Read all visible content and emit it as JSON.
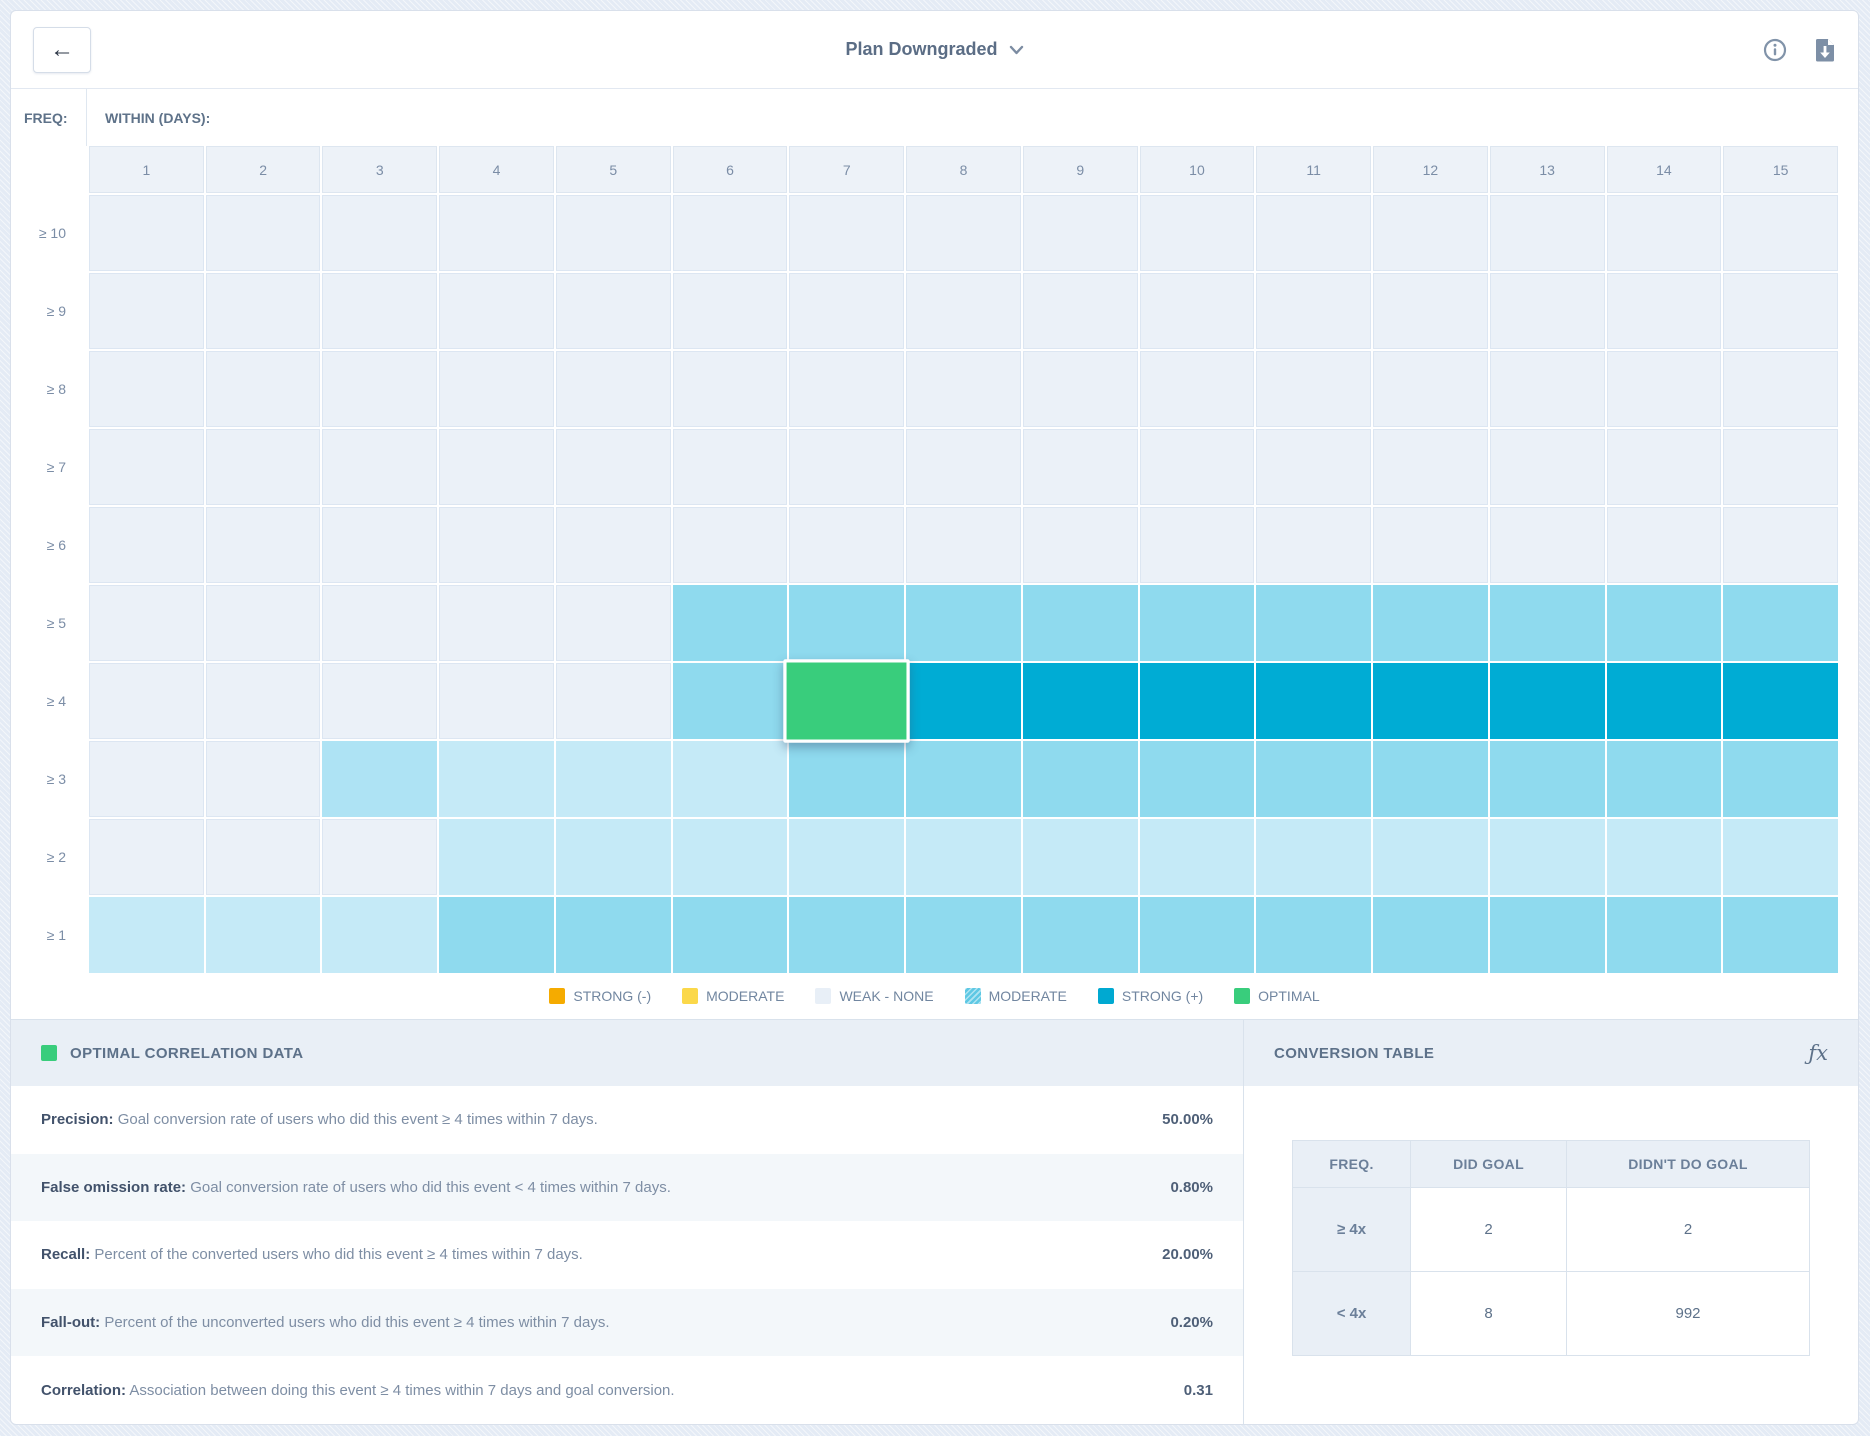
{
  "header": {
    "title": "Plan Downgraded",
    "icons": {
      "back": "←",
      "info": "info-icon",
      "export": "export-report-icon",
      "dropdown": "chevron-down-icon"
    }
  },
  "grid": {
    "freq_label": "FREQ:",
    "within_label": "WITHIN (DAYS):",
    "columns": [
      "1",
      "2",
      "3",
      "4",
      "5",
      "6",
      "7",
      "8",
      "9",
      "10",
      "11",
      "12",
      "13",
      "14",
      "15"
    ],
    "rows": [
      {
        "label": "≥ 10",
        "cells": [
          "w",
          "w",
          "w",
          "w",
          "w",
          "w",
          "w",
          "w",
          "w",
          "w",
          "w",
          "w",
          "w",
          "w",
          "w"
        ]
      },
      {
        "label": "≥ 9",
        "cells": [
          "w",
          "w",
          "w",
          "w",
          "w",
          "w",
          "w",
          "w",
          "w",
          "w",
          "w",
          "w",
          "w",
          "w",
          "w"
        ]
      },
      {
        "label": "≥ 8",
        "cells": [
          "w",
          "w",
          "w",
          "w",
          "w",
          "w",
          "w",
          "w",
          "w",
          "w",
          "w",
          "w",
          "w",
          "w",
          "w"
        ]
      },
      {
        "label": "≥ 7",
        "cells": [
          "w",
          "w",
          "w",
          "w",
          "w",
          "w",
          "w",
          "w",
          "w",
          "w",
          "w",
          "w",
          "w",
          "w",
          "w"
        ]
      },
      {
        "label": "≥ 6",
        "cells": [
          "w",
          "w",
          "w",
          "w",
          "w",
          "w",
          "w",
          "w",
          "w",
          "w",
          "w",
          "w",
          "w",
          "w",
          "w"
        ]
      },
      {
        "label": "≥ 5",
        "cells": [
          "w",
          "w",
          "w",
          "w",
          "w",
          "m",
          "m",
          "m",
          "m",
          "m",
          "m",
          "m",
          "m",
          "m",
          "m"
        ]
      },
      {
        "label": "≥ 4",
        "cells": [
          "w",
          "w",
          "w",
          "w",
          "w",
          "m",
          "g",
          "s",
          "s",
          "s",
          "s",
          "s",
          "s",
          "s",
          "s"
        ]
      },
      {
        "label": "≥ 3",
        "cells": [
          "w",
          "w",
          "lm",
          "l",
          "l",
          "l",
          "m",
          "m",
          "m",
          "m",
          "m",
          "m",
          "m",
          "m",
          "m"
        ]
      },
      {
        "label": "≥ 2",
        "cells": [
          "w",
          "w",
          "w",
          "l",
          "l",
          "l",
          "l",
          "l",
          "l",
          "l",
          "l",
          "l",
          "l",
          "l",
          "l"
        ]
      },
      {
        "label": "≥ 1",
        "cells": [
          "l",
          "l",
          "l",
          "m",
          "m",
          "m",
          "m",
          "m",
          "m",
          "m",
          "m",
          "m",
          "m",
          "m",
          "m"
        ]
      }
    ],
    "cell_colors": {
      "w": "#ebf1f8",
      "l": "#c5eaf7",
      "lm": "#aee3f4",
      "m": "#8fdaee",
      "s": "#00acd4",
      "g": "#39cd7c"
    }
  },
  "legend": {
    "items": [
      {
        "label": "STRONG (-)",
        "color": "#f5ab00",
        "style": "solid"
      },
      {
        "label": "MODERATE",
        "color": "#fbd84a",
        "style": "solid"
      },
      {
        "label": "WEAK - NONE",
        "color": "#e8eff7",
        "style": "solid"
      },
      {
        "label": "MODERATE",
        "color": "#5ec8e4",
        "style": "hatched"
      },
      {
        "label": "STRONG (+)",
        "color": "#00a9d1",
        "style": "solid"
      },
      {
        "label": "OPTIMAL",
        "color": "#39cd7c",
        "style": "solid"
      }
    ]
  },
  "optimal_panel": {
    "title": "OPTIMAL CORRELATION DATA",
    "swatch_color": "#39cd7c",
    "stats": [
      {
        "label": "Precision:",
        "description": "Goal conversion rate of users who did this event ≥ 4 times within 7 days.",
        "value": "50.00%"
      },
      {
        "label": "False omission rate:",
        "description": "Goal conversion rate of users who did this event < 4 times within 7 days.",
        "value": "0.80%"
      },
      {
        "label": "Recall:",
        "description": "Percent of the converted users who did this event ≥ 4 times within 7 days.",
        "value": "20.00%"
      },
      {
        "label": "Fall-out:",
        "description": "Percent of the unconverted users who did this event ≥ 4 times within 7 days.",
        "value": "0.20%"
      },
      {
        "label": "Correlation:",
        "description": "Association between doing this event ≥ 4 times within 7 days and goal conversion.",
        "value": "0.31"
      }
    ]
  },
  "conversion_panel": {
    "title": "CONVERSION TABLE",
    "fx_label": "ƒx",
    "table": {
      "headers": [
        "FREQ.",
        "DID GOAL",
        "DIDN'T DO GOAL"
      ],
      "rows": [
        {
          "freq": "≥ 4x",
          "did_goal": "2",
          "didnt_do_goal": "2"
        },
        {
          "freq": "< 4x",
          "did_goal": "8",
          "didnt_do_goal": "992"
        }
      ]
    }
  }
}
